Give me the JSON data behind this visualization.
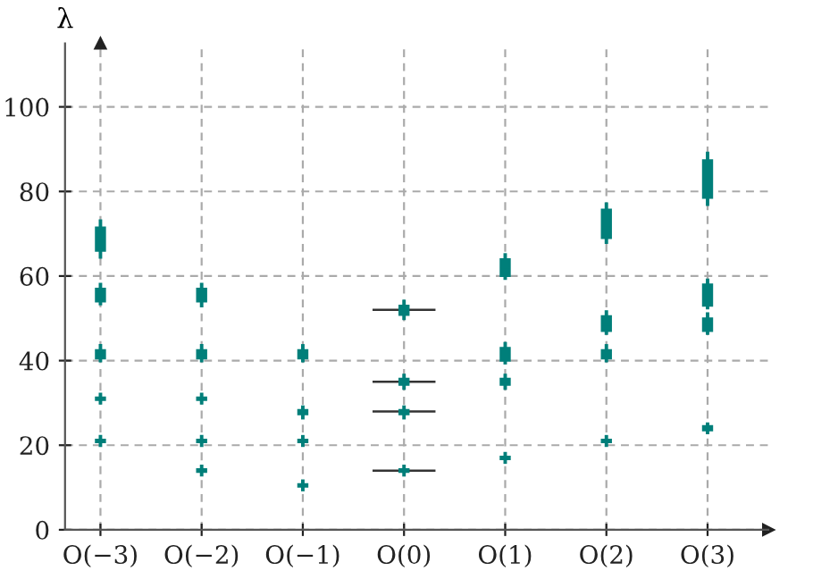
{
  "chart_data": {
    "type": "box",
    "ylabel": "λ",
    "categories": [
      "O(−3)",
      "O(−2)",
      "O(−1)",
      "O(0)",
      "O(1)",
      "O(2)",
      "O(3)"
    ],
    "ylim": [
      0,
      115
    ],
    "yticks": [
      0,
      20,
      40,
      60,
      80,
      100
    ],
    "grid": true,
    "series": [
      {
        "color": "#007f7a",
        "boxes": [
          {
            "low": 64.5,
            "q1": 66,
            "median": 69,
            "q3": 71.5,
            "high": 73
          },
          {
            "low": 53,
            "q1": 54,
            "median": 55.5,
            "q3": 57,
            "high": 58
          },
          {
            "low": 40,
            "q1": 40.5,
            "median": 41.5,
            "q3": 42.5,
            "high": 43.5
          },
          {
            "low": 50,
            "q1": 50.8,
            "median": 51.8,
            "q3": 53,
            "high": 54
          },
          {
            "low": 59.5,
            "q1": 60,
            "median": 62,
            "q3": 64,
            "high": 65
          },
          {
            "low": 68,
            "q1": 69,
            "median": 72,
            "q3": 75.7,
            "high": 77
          },
          {
            "low": 77,
            "q1": 78.5,
            "median": 83,
            "q3": 87.4,
            "high": 89
          }
        ]
      },
      {
        "color": "#007f7a",
        "boxes": [
          {
            "low": 53.5,
            "q1": 54,
            "median": 55.5,
            "q3": 57,
            "high": 58
          },
          {
            "low": 40,
            "q1": 40.5,
            "median": 41.5,
            "q3": 42.5,
            "high": 43.5
          },
          {
            "low": 26.5,
            "q1": 27.3,
            "median": 27.8,
            "q3": 28.3,
            "high": 29
          },
          {
            "low": 33.5,
            "q1": 34.3,
            "median": 35,
            "q3": 35.7,
            "high": 36.5
          },
          {
            "low": 39.5,
            "q1": 40,
            "median": 41.5,
            "q3": 43,
            "high": 44
          },
          {
            "low": 46.5,
            "q1": 47,
            "median": 48.5,
            "q3": 50.5,
            "high": 51.5
          },
          {
            "low": 52.5,
            "q1": 53,
            "median": 55.5,
            "q3": 58,
            "high": 59
          }
        ]
      },
      {
        "color": "#007f7a",
        "boxes": [
          {
            "low": 40,
            "q1": 40.5,
            "median": 41.5,
            "q3": 42.5,
            "high": 43.5
          },
          {
            "low": 30,
            "q1": 30.7,
            "median": 31,
            "q3": 31.3,
            "high": 32
          },
          {
            "low": 20,
            "q1": 20.7,
            "median": 21,
            "q3": 21.3,
            "high": 22
          },
          {
            "low": 26.5,
            "q1": 27.3,
            "median": 27.8,
            "q3": 28.3,
            "high": 29
          },
          {
            "low": 33.5,
            "q1": 34.3,
            "median": 35,
            "q3": 35.7,
            "high": 36.5
          },
          {
            "low": 40,
            "q1": 40.5,
            "median": 41.5,
            "q3": 42.5,
            "high": 43.5
          },
          {
            "low": 46.5,
            "q1": 47,
            "median": 48.5,
            "q3": 50,
            "high": 51
          }
        ]
      },
      {
        "color": "#007f7a",
        "boxes": [
          {
            "low": 30,
            "q1": 30.7,
            "median": 31,
            "q3": 31.3,
            "high": 32
          },
          {
            "low": 20,
            "q1": 20.7,
            "median": 21,
            "q3": 21.3,
            "high": 22
          },
          {
            "low": 9.5,
            "q1": 10.2,
            "median": 10.5,
            "q3": 10.8,
            "high": 11.5
          },
          {
            "low": 13,
            "q1": 13.7,
            "median": 14,
            "q3": 14.3,
            "high": 15
          },
          {
            "low": 16,
            "q1": 16.7,
            "median": 17,
            "q3": 17.3,
            "high": 18
          },
          {
            "low": 20,
            "q1": 20.7,
            "median": 21,
            "q3": 21.3,
            "high": 22
          },
          {
            "low": 23,
            "q1": 23.5,
            "median": 24,
            "q3": 24.5,
            "high": 25
          }
        ]
      },
      {
        "color": "#007f7a",
        "boxes": [
          {
            "low": 20,
            "q1": 20.7,
            "median": 21,
            "q3": 21.3,
            "high": 22
          },
          {
            "low": 13,
            "q1": 13.7,
            "median": 14,
            "q3": 14.3,
            "high": 15
          },
          null,
          null,
          null,
          null,
          null
        ]
      }
    ],
    "ref_lines": [
      {
        "axis": "y",
        "value": 52,
        "color": "#333333"
      },
      {
        "axis": "y",
        "value": 35,
        "color": "#333333"
      },
      {
        "axis": "y",
        "value": 28,
        "color": "#333333"
      },
      {
        "axis": "y",
        "value": 14,
        "color": "#333333"
      }
    ]
  }
}
